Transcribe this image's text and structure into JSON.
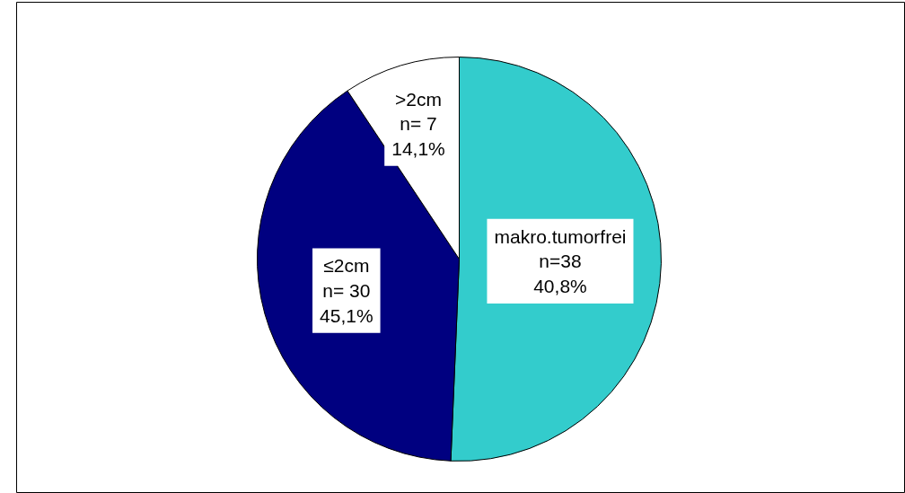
{
  "chart_data": {
    "type": "pie",
    "categories": [
      "makro.tumorfrei",
      "≤2cm",
      ">2cm"
    ],
    "values": [
      38,
      30,
      7
    ],
    "value_labels": [
      "n=38\n40,8%",
      "n= 30\n45,1%",
      "n= 7\n14,1%"
    ],
    "colors": [
      "#33cccc",
      "#000080",
      "#ffffff"
    ]
  }
}
